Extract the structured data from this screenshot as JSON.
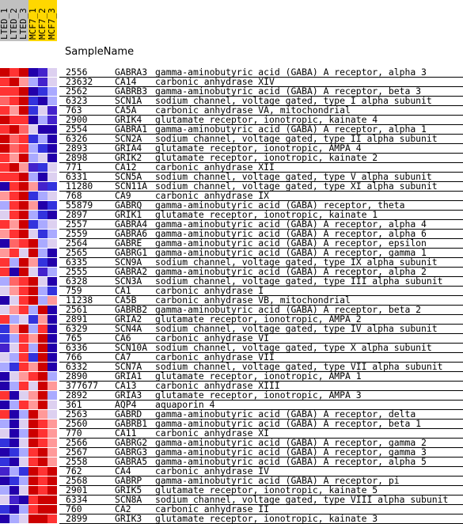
{
  "columns": [
    {
      "label": "LTED_1",
      "color": "#c0c0c0"
    },
    {
      "label": "LTED_2",
      "color": "#c0c0c0"
    },
    {
      "label": "LTED_3",
      "color": "#c0c0c0"
    },
    {
      "label": "MCF7_1",
      "color": "#ffd700"
    },
    {
      "label": "MCF7_2",
      "color": "#ffd700"
    },
    {
      "label": "MCF7_3",
      "color": "#ffd700"
    }
  ],
  "sample_name_label": "SampleName",
  "palette": {
    "dark_red": "#cc0000",
    "red": "#ff3333",
    "pink": "#ff9999",
    "light": "#ddd0f0",
    "lavender": "#aaaaff",
    "blue": "#3333dd",
    "dark_blue": "#2200aa"
  },
  "rows": [
    {
      "id": "2556",
      "symbol": "GABRA3",
      "desc": "gamma-aminobutyric acid (GABA) A receptor, alpha 3",
      "cells": [
        "#cc0000",
        "#ff3333",
        "#cc0000",
        "#2200aa",
        "#4422cc",
        "#ddd0f0"
      ]
    },
    {
      "id": "23632",
      "symbol": "CA14",
      "desc": "carbonic anhydrase XIV",
      "cells": [
        "#ff3333",
        "#cc0000",
        "#ff9999",
        "#aaaaff",
        "#4422cc",
        "#ddd0f0"
      ]
    },
    {
      "id": "2562",
      "symbol": "GABRB3",
      "desc": "gamma-aminobutyric acid (GABA) A receptor, beta 3",
      "cells": [
        "#ff3333",
        "#ff3333",
        "#cc0000",
        "#2200aa",
        "#3333dd",
        "#aaaaff"
      ]
    },
    {
      "id": "6323",
      "symbol": "SCN1A",
      "desc": "sodium channel, voltage gated, type I alpha subunit",
      "cells": [
        "#ff6666",
        "#ff3333",
        "#cc0000",
        "#3333dd",
        "#2200aa",
        "#aaaaff"
      ]
    },
    {
      "id": "763",
      "symbol": "CA5A",
      "desc": "carbonic anhydrase VA, mitochondrial",
      "cells": [
        "#ff3333",
        "#ff9999",
        "#cc0000",
        "#3333dd",
        "#ddd0f0",
        "#4422cc"
      ]
    },
    {
      "id": "2900",
      "symbol": "GRIK4",
      "desc": "glutamate receptor, ionotropic, kainate 4",
      "cells": [
        "#cc0000",
        "#ff3333",
        "#ff3333",
        "#2200aa",
        "#aaaaff",
        "#4422cc"
      ]
    },
    {
      "id": "2554",
      "symbol": "GABRA1",
      "desc": "gamma-aminobutyric acid (GABA) A receptor, alpha 1",
      "cells": [
        "#ff3333",
        "#cc0000",
        "#ff6666",
        "#ddd0f0",
        "#2200aa",
        "#2200aa"
      ]
    },
    {
      "id": "6326",
      "symbol": "SCN2A",
      "desc": "sodium channel, voltage gated, type II alpha subunit",
      "cells": [
        "#cc0000",
        "#ff6666",
        "#ff3333",
        "#3333dd",
        "#aaaaff",
        "#2200aa"
      ]
    },
    {
      "id": "2893",
      "symbol": "GRIA4",
      "desc": "glutamate receptor, ionotropic, AMPA 4",
      "cells": [
        "#cc0000",
        "#ff6666",
        "#ff3333",
        "#aaaaff",
        "#3333dd",
        "#2200aa"
      ]
    },
    {
      "id": "2898",
      "symbol": "GRIK2",
      "desc": "glutamate receptor, ionotropic, kainate 2",
      "cells": [
        "#ff3333",
        "#ff9999",
        "#cc0000",
        "#aaaaff",
        "#ddd0f0",
        "#2200aa"
      ]
    },
    {
      "id": "771",
      "symbol": "CA12",
      "desc": "carbonic anhydrase XII",
      "cells": [
        "#ff3333",
        "#cc0000",
        "#ff9999",
        "#4422cc",
        "#3333dd",
        "#ddd0f0"
      ]
    },
    {
      "id": "6331",
      "symbol": "SCN5A",
      "desc": "sodium channel, voltage gated, type V alpha subunit",
      "cells": [
        "#ff3333",
        "#ff3333",
        "#cc0000",
        "#aaaaff",
        "#2200aa",
        "#ddd0f0"
      ]
    },
    {
      "id": "11280",
      "symbol": "SCN11A",
      "desc": "sodium channel, voltage gated, type XI alpha subunit",
      "cells": [
        "#2200aa",
        "#ff3333",
        "#cc0000",
        "#ff9999",
        "#4422cc",
        "#3333dd"
      ]
    },
    {
      "id": "768",
      "symbol": "CA9",
      "desc": "carbonic anhydrase IX",
      "cells": [
        "#ff9999",
        "#ff3333",
        "#cc0000",
        "#3333dd",
        "#aaaaff",
        "#ddd0f0"
      ]
    },
    {
      "id": "55879",
      "symbol": "GABRQ",
      "desc": "gamma-aminobutyric acid (GABA) receptor, theta",
      "cells": [
        "#aaaaff",
        "#ff3333",
        "#cc0000",
        "#ff9999",
        "#2200aa",
        "#3333dd"
      ]
    },
    {
      "id": "2897",
      "symbol": "GRIK1",
      "desc": "glutamate receptor, ionotropic, kainate 1",
      "cells": [
        "#ddd0f0",
        "#ff3333",
        "#cc0000",
        "#aaaaff",
        "#3333dd",
        "#2200aa"
      ]
    },
    {
      "id": "2557",
      "symbol": "GABRA4",
      "desc": "gamma-aminobutyric acid (GABA) A receptor, alpha 4",
      "cells": [
        "#ff3333",
        "#ff9999",
        "#cc0000",
        "#3333dd",
        "#aaaaff",
        "#ddd0f0"
      ]
    },
    {
      "id": "2559",
      "symbol": "GABRA6",
      "desc": "gamma-aminobutyric acid (GABA) A receptor, alpha 6",
      "cells": [
        "#ff9999",
        "#ff3333",
        "#cc0000",
        "#ddd0f0",
        "#3333dd",
        "#aaaaff"
      ]
    },
    {
      "id": "2564",
      "symbol": "GABRE",
      "desc": "gamma-aminobutyric acid (GABA) A receptor, epsilon",
      "cells": [
        "#2200aa",
        "#ff6666",
        "#ff3333",
        "#cc0000",
        "#aaaaff",
        "#ddd0f0"
      ]
    },
    {
      "id": "2565",
      "symbol": "GABRG1",
      "desc": "gamma-aminobutyric acid (GABA) A receptor, gamma 1",
      "cells": [
        "#ff9999",
        "#ff3333",
        "#ddd0f0",
        "#cc0000",
        "#aaaaff",
        "#2200aa"
      ]
    },
    {
      "id": "6335",
      "symbol": "SCN9A",
      "desc": "sodium channel, voltage gated, type IX alpha subunit",
      "cells": [
        "#ff3333",
        "#aaaaff",
        "#cc0000",
        "#ff9999",
        "#3333dd",
        "#2200aa"
      ]
    },
    {
      "id": "2555",
      "symbol": "GABRA2",
      "desc": "gamma-aminobutyric acid (GABA) A receptor, alpha 2",
      "cells": [
        "#ff3333",
        "#2200aa",
        "#cc0000",
        "#ddd0f0",
        "#4422cc",
        "#aaaaff"
      ]
    },
    {
      "id": "6328",
      "symbol": "SCN3A",
      "desc": "sodium channel, voltage gated, type III alpha subunit",
      "cells": [
        "#aaaaff",
        "#ff6666",
        "#ff3333",
        "#cc0000",
        "#ddd0f0",
        "#2200aa"
      ]
    },
    {
      "id": "759",
      "symbol": "CA1",
      "desc": "carbonic anhydrase I",
      "cells": [
        "#ddd0f0",
        "#ff9999",
        "#ff3333",
        "#cc0000",
        "#aaaaff",
        "#3333dd"
      ]
    },
    {
      "id": "11238",
      "symbol": "CA5B",
      "desc": "carbonic anhydrase VB, mitochondrial",
      "cells": [
        "#2200aa",
        "#ddd0f0",
        "#ff3333",
        "#cc0000",
        "#aaaaff",
        "#ff9999"
      ]
    },
    {
      "id": "2561",
      "symbol": "GABRB2",
      "desc": "gamma-aminobutyric acid (GABA) A receptor, beta 2",
      "cells": [
        "#ddd0f0",
        "#ff9999",
        "#ff3333",
        "#aaaaff",
        "#cc0000",
        "#2200aa"
      ]
    },
    {
      "id": "2891",
      "symbol": "GRIA2",
      "desc": "glutamate receptor, ionotropic, AMPA 2",
      "cells": [
        "#ff3333",
        "#aaaaff",
        "#ddd0f0",
        "#3333dd",
        "#ff9999",
        "#2200aa"
      ]
    },
    {
      "id": "6329",
      "symbol": "SCN4A",
      "desc": "sodium channel, voltage gated, type IV alpha subunit",
      "cells": [
        "#3333dd",
        "#ff9999",
        "#cc0000",
        "#aaaaff",
        "#ff3333",
        "#2200aa"
      ]
    },
    {
      "id": "765",
      "symbol": "CA6",
      "desc": "carbonic anhydrase VI",
      "cells": [
        "#3333dd",
        "#aaaaff",
        "#ff3333",
        "#ff9999",
        "#cc0000",
        "#2200aa"
      ]
    },
    {
      "id": "6336",
      "symbol": "SCN10A",
      "desc": "sodium channel, voltage gated, type X alpha subunit",
      "cells": [
        "#4422cc",
        "#ddd0f0",
        "#ff3333",
        "#aaaaff",
        "#cc0000",
        "#2200aa"
      ]
    },
    {
      "id": "766",
      "symbol": "CA7",
      "desc": "carbonic anhydrase VII",
      "cells": [
        "#ddd0f0",
        "#aaaaff",
        "#ff3333",
        "#3333dd",
        "#cc0000",
        "#2200aa"
      ]
    },
    {
      "id": "6332",
      "symbol": "SCN7A",
      "desc": "sodium channel, voltage gated, type VII alpha subunit",
      "cells": [
        "#aaaaff",
        "#3333dd",
        "#ff3333",
        "#ff9999",
        "#cc0000",
        "#2200aa"
      ]
    },
    {
      "id": "2890",
      "symbol": "GRIA1",
      "desc": "glutamate receptor, ionotropic, AMPA 1",
      "cells": [
        "#2200aa",
        "#ddd0f0",
        "#ff9999",
        "#ff3333",
        "#cc0000",
        "#aaaaff"
      ]
    },
    {
      "id": "377677",
      "symbol": "CA13",
      "desc": "carbonic anhydrase XIII",
      "cells": [
        "#2200aa",
        "#aaaaff",
        "#ff3333",
        "#ddd0f0",
        "#cc0000",
        "#ff9999"
      ]
    },
    {
      "id": "2892",
      "symbol": "GRIA3",
      "desc": "glutamate receptor, ionotropic, AMPA 3",
      "cells": [
        "#ff3333",
        "#2200aa",
        "#ddd0f0",
        "#ff9999",
        "#cc0000",
        "#aaaaff"
      ]
    },
    {
      "id": "361",
      "symbol": "AQP4",
      "desc": "aquaporin 4",
      "cells": [
        "#2200aa",
        "#aaaaff",
        "#ff3333",
        "#ff9999",
        "#cc0000",
        "#ddd0f0"
      ]
    },
    {
      "id": "2563",
      "symbol": "GABRD",
      "desc": "gamma-aminobutyric acid (GABA) A receptor, delta",
      "cells": [
        "#ff3333",
        "#2200aa",
        "#aaaaff",
        "#cc0000",
        "#ff9999",
        "#ddd0f0"
      ]
    },
    {
      "id": "2560",
      "symbol": "GABRB1",
      "desc": "gamma-aminobutyric acid (GABA) A receptor, beta 1",
      "cells": [
        "#aaaaff",
        "#2200aa",
        "#ddd0f0",
        "#cc0000",
        "#ff3333",
        "#ff9999"
      ]
    },
    {
      "id": "770",
      "symbol": "CA11",
      "desc": "carbonic anhydrase XI",
      "cells": [
        "#ddd0f0",
        "#2200aa",
        "#aaaaff",
        "#cc0000",
        "#ff3333",
        "#ff9999"
      ]
    },
    {
      "id": "2566",
      "symbol": "GABRG2",
      "desc": "gamma-aminobutyric acid (GABA) A receptor, gamma 2",
      "cells": [
        "#3333dd",
        "#2200aa",
        "#ddd0f0",
        "#cc0000",
        "#ff3333",
        "#ff9999"
      ]
    },
    {
      "id": "2567",
      "symbol": "GABRG3",
      "desc": "gamma-aminobutyric acid (GABA) A receptor, gamma 3",
      "cells": [
        "#2200aa",
        "#3333dd",
        "#aaaaff",
        "#ff3333",
        "#cc0000",
        "#ff9999"
      ]
    },
    {
      "id": "2558",
      "symbol": "GABRA5",
      "desc": "gamma-aminobutyric acid (GABA) A receptor, alpha 5",
      "cells": [
        "#3333dd",
        "#2200aa",
        "#ddd0f0",
        "#ff3333",
        "#cc0000",
        "#ff9999"
      ]
    },
    {
      "id": "762",
      "symbol": "CA4",
      "desc": "carbonic anhydrase IV",
      "cells": [
        "#4422cc",
        "#aaaaff",
        "#3333dd",
        "#cc0000",
        "#ff3333",
        "#cc0000"
      ]
    },
    {
      "id": "2568",
      "symbol": "GABRP",
      "desc": "gamma-aminobutyric acid (GABA) A receptor, pi",
      "cells": [
        "#2200aa",
        "#3333dd",
        "#aaaaff",
        "#cc0000",
        "#ff3333",
        "#cc0000"
      ]
    },
    {
      "id": "2901",
      "symbol": "GRIK5",
      "desc": "glutamate receptor, ionotropic, kainate 5",
      "cells": [
        "#aaaaff",
        "#2200aa",
        "#ddd0f0",
        "#cc0000",
        "#ff3333",
        "#cc0000"
      ]
    },
    {
      "id": "6334",
      "symbol": "SCN8A",
      "desc": "sodium channel, voltage gated, type VIII alpha subunit",
      "cells": [
        "#ddd0f0",
        "#4422cc",
        "#2200aa",
        "#ff3333",
        "#cc0000",
        "#cc0000"
      ]
    },
    {
      "id": "760",
      "symbol": "CA2",
      "desc": "carbonic anhydrase II",
      "cells": [
        "#3333dd",
        "#2200aa",
        "#aaaaff",
        "#ff3333",
        "#cc0000",
        "#cc0000"
      ]
    },
    {
      "id": "2899",
      "symbol": "GRIK3",
      "desc": "glutamate receptor, ionotropic, kainate 3",
      "cells": [
        "#2200aa",
        "#aaaaff",
        "#ddd0f0",
        "#cc0000",
        "#cc0000",
        "#ff3333"
      ]
    }
  ]
}
